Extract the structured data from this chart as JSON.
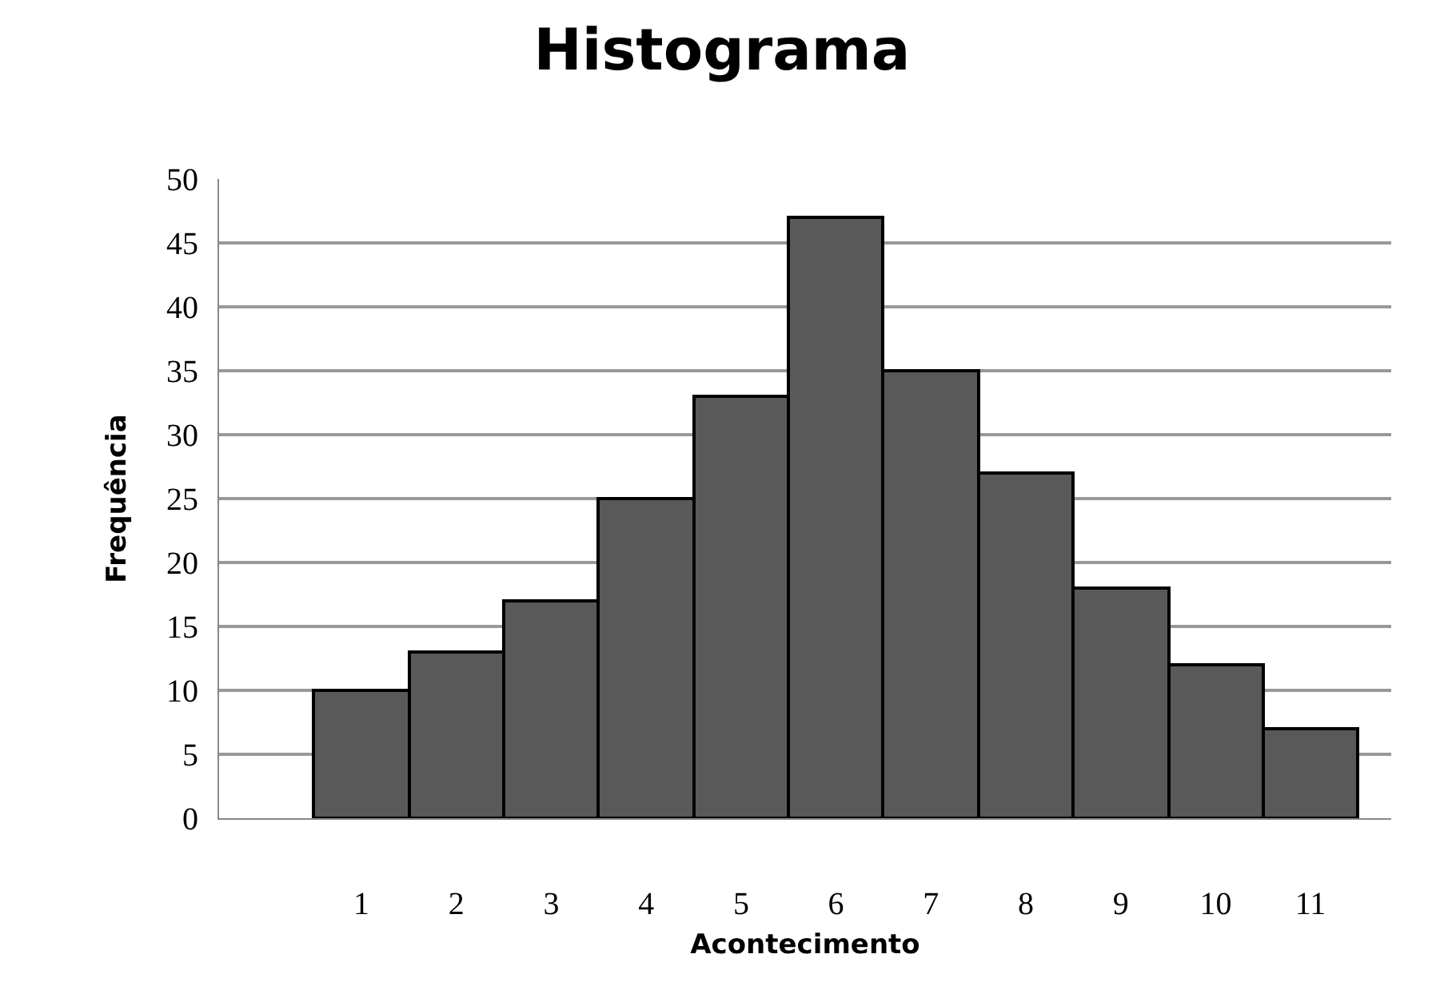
{
  "chart_data": {
    "type": "bar",
    "title": "Histograma",
    "xlabel": "Acontecimento",
    "ylabel": "Frequência",
    "categories": [
      "1",
      "2",
      "3",
      "4",
      "5",
      "6",
      "7",
      "8",
      "9",
      "10",
      "11"
    ],
    "values": [
      10,
      13,
      17,
      25,
      33,
      47,
      35,
      27,
      18,
      12,
      7
    ],
    "color": "#595959",
    "ylim": [
      0,
      50
    ],
    "yticks": [
      0,
      5,
      10,
      15,
      20,
      25,
      30,
      35,
      40,
      45,
      50
    ],
    "grid": "y"
  }
}
